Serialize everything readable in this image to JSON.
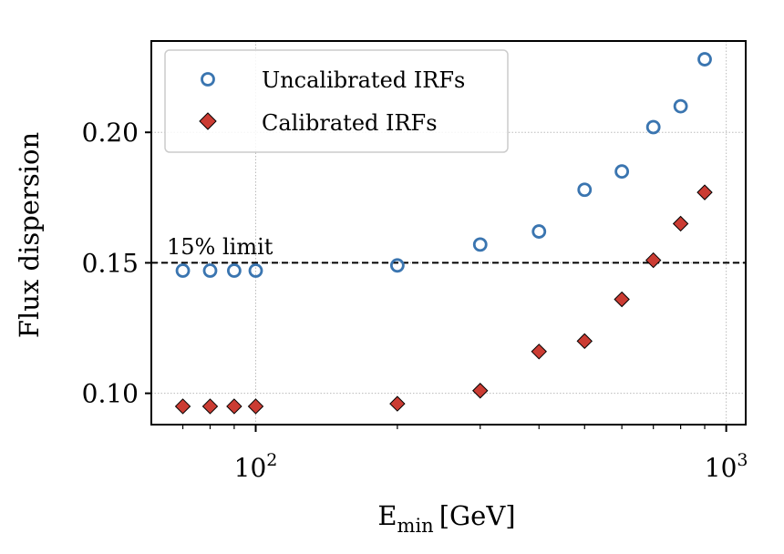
{
  "chart_data": {
    "type": "scatter",
    "title": "",
    "xlabel": "E",
    "xlabel_sub": "min",
    "xlabel_unit": "[GeV]",
    "ylabel": "Flux dispersion",
    "x_scale": "log",
    "xlim": [
      60,
      1100
    ],
    "ylim": [
      0.088,
      0.235
    ],
    "grid": true,
    "legend_position": "upper-left",
    "x_ticks": [
      {
        "value": 100,
        "base": "10",
        "exp": "2"
      },
      {
        "value": 1000,
        "base": "10",
        "exp": "3"
      }
    ],
    "y_ticks": [
      {
        "value": 0.1,
        "label": "0.10"
      },
      {
        "value": 0.15,
        "label": "0.15"
      },
      {
        "value": 0.2,
        "label": "0.20"
      }
    ],
    "reference_line": {
      "y": 0.15,
      "label": "15% limit"
    },
    "series": [
      {
        "name": "Uncalibrated IRFs",
        "marker": "circle",
        "color": "#3a75b0",
        "x": [
          70,
          80,
          90,
          100,
          200,
          300,
          400,
          500,
          600,
          700,
          800,
          900
        ],
        "y": [
          0.147,
          0.147,
          0.147,
          0.147,
          0.149,
          0.157,
          0.162,
          0.178,
          0.185,
          0.202,
          0.21,
          0.228
        ]
      },
      {
        "name": "Calibrated IRFs",
        "marker": "diamond",
        "color": "#cb3c33",
        "x": [
          70,
          80,
          90,
          100,
          200,
          300,
          400,
          500,
          600,
          700,
          800,
          900
        ],
        "y": [
          0.095,
          0.095,
          0.095,
          0.095,
          0.096,
          0.101,
          0.116,
          0.12,
          0.136,
          0.151,
          0.165,
          0.177
        ]
      }
    ]
  }
}
